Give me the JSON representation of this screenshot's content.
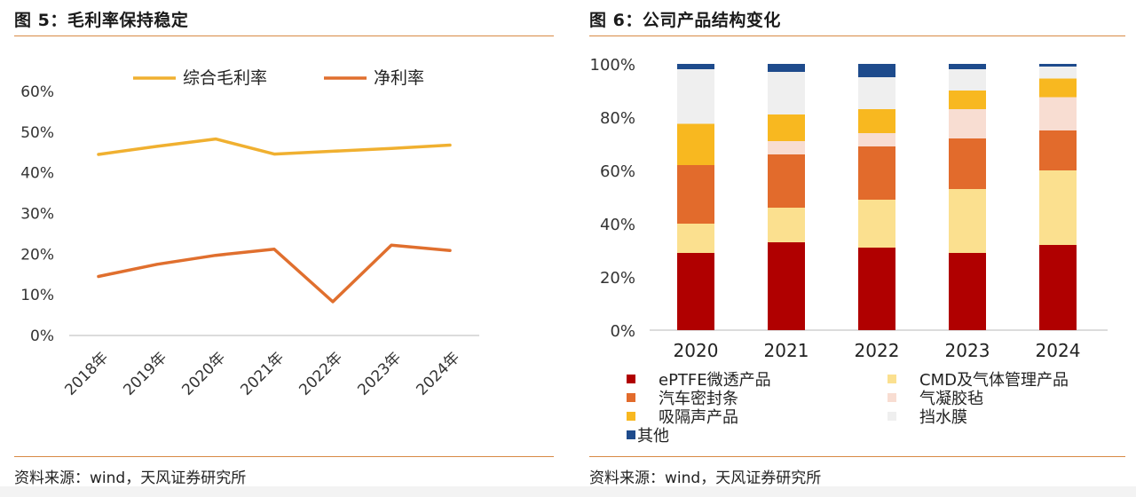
{
  "left": {
    "figure_title": "图 5：毛利率保持稳定",
    "source": "资料来源：wind，天风证券研究所"
  },
  "right": {
    "figure_title": "图 6：公司产品结构变化",
    "source": "资料来源：wind，天风证券研究所"
  },
  "chart_data": [
    {
      "type": "line",
      "title": "毛利率保持稳定",
      "categories": [
        "2018年",
        "2019年",
        "2020年",
        "2021年",
        "2022年",
        "2023年",
        "2024年"
      ],
      "series": [
        {
          "name": "综合毛利率",
          "color": "#f0b030",
          "values": [
            44.5,
            46.5,
            48.3,
            44.6,
            45.3,
            46.0,
            46.8
          ]
        },
        {
          "name": "净利率",
          "color": "#e06f2e",
          "values": [
            14.5,
            17.5,
            19.7,
            21.2,
            8.3,
            22.2,
            20.9
          ]
        }
      ],
      "y_ticks": [
        "0%",
        "10%",
        "20%",
        "30%",
        "40%",
        "50%",
        "60%"
      ],
      "ylim": [
        0,
        60
      ],
      "legend_position": "top"
    },
    {
      "type": "bar",
      "stacked": true,
      "title": "公司产品结构变化",
      "categories": [
        "2020",
        "2021",
        "2022",
        "2023",
        "2024"
      ],
      "series": [
        {
          "name": "ePTFE微透产品",
          "color": "#b00000",
          "values": [
            29,
            33,
            31,
            29,
            32
          ]
        },
        {
          "name": "CMD及气体管理产品",
          "color": "#fbe08f",
          "values": [
            11,
            13,
            18,
            24,
            28
          ]
        },
        {
          "name": "汽车密封条",
          "color": "#e26b2c",
          "values": [
            22,
            20,
            20,
            19,
            15
          ]
        },
        {
          "name": "气凝胶毡",
          "color": "#f8ddd2",
          "values": [
            0,
            5,
            5,
            11,
            12.5
          ]
        },
        {
          "name": "吸隔声产品",
          "color": "#f8b820",
          "values": [
            15.5,
            10,
            9,
            7,
            7
          ]
        },
        {
          "name": "挡水膜",
          "color": "#efefef",
          "values": [
            20.5,
            16,
            12,
            8,
            4.5
          ]
        },
        {
          "name": "其他",
          "color": "#1e4b8c",
          "values": [
            2,
            3,
            5,
            2,
            1
          ]
        }
      ],
      "y_ticks": [
        "0%",
        "20%",
        "40%",
        "60%",
        "80%",
        "100%"
      ],
      "ylim": [
        0,
        100
      ]
    }
  ]
}
